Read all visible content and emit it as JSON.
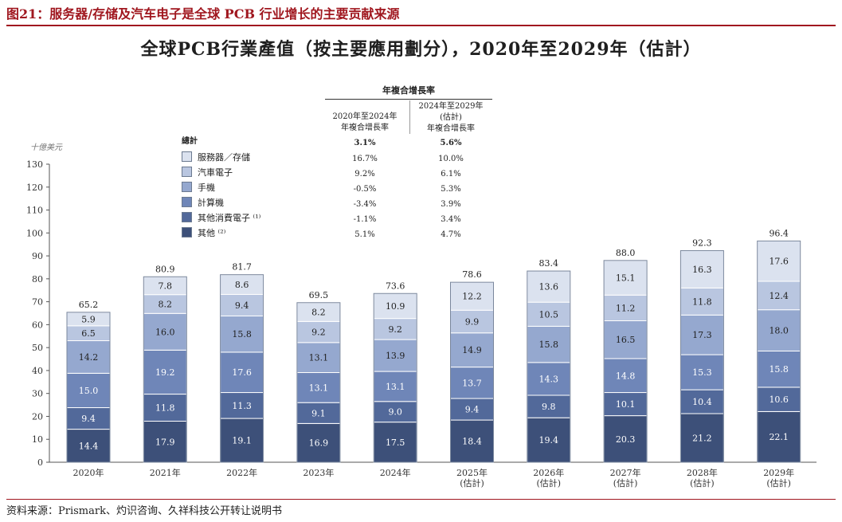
{
  "figure_title": "图21：服务器/存储及汽车电子是全球 PCB 行业增长的主要贡献来源",
  "source": "资料来源：Prismark、灼识咨询、久祥科技公开转让说明书",
  "chart_data": {
    "type": "bar",
    "stacked": true,
    "title": "全球PCB行業產值（按主要應用劃分），2020年至2029年（估計）",
    "ylabel": "十億美元",
    "ylim": [
      0,
      130
    ],
    "yticks": [
      0,
      10,
      20,
      30,
      40,
      50,
      60,
      70,
      80,
      90,
      100,
      110,
      120,
      130
    ],
    "categories": [
      "2020年",
      "2021年",
      "2022年",
      "2023年",
      "2024年",
      "2025年\n(估計)",
      "2026年\n(估計)",
      "2027年\n(估計)",
      "2028年\n(估計)",
      "2029年\n(估計)"
    ],
    "totals": [
      "65.2",
      "80.9",
      "81.7",
      "69.5",
      "73.6",
      "78.6",
      "83.4",
      "88.0",
      "92.3",
      "96.4"
    ],
    "legend_title": "總計",
    "legend_placement": "upper-left",
    "series": [
      {
        "name": "其他 ⁽²⁾",
        "color": "#3d5079",
        "values": [
          14.4,
          17.9,
          19.1,
          16.9,
          17.5,
          18.4,
          19.4,
          20.3,
          21.2,
          22.1
        ]
      },
      {
        "name": "其他消費電子 ⁽¹⁾",
        "color": "#52699a",
        "values": [
          9.4,
          11.8,
          11.3,
          9.1,
          9.0,
          9.4,
          9.8,
          10.1,
          10.4,
          10.6
        ]
      },
      {
        "name": "計算機",
        "color": "#6f86b8",
        "values": [
          15.0,
          19.2,
          17.6,
          13.1,
          13.1,
          13.7,
          14.3,
          14.8,
          15.3,
          15.8
        ]
      },
      {
        "name": "手機",
        "color": "#95a8cf",
        "values": [
          14.2,
          16.0,
          15.8,
          13.1,
          13.9,
          14.9,
          15.8,
          16.5,
          17.3,
          18.0
        ]
      },
      {
        "name": "汽車電子",
        "color": "#b9c6e0",
        "values": [
          6.5,
          8.2,
          9.4,
          9.2,
          9.2,
          9.9,
          10.5,
          11.2,
          11.8,
          12.4
        ]
      },
      {
        "name": "服務器／存儲",
        "color": "#dbe2ef",
        "values": [
          5.9,
          7.8,
          8.6,
          8.2,
          10.9,
          12.2,
          13.6,
          15.1,
          16.3,
          17.6
        ]
      }
    ],
    "value_labels": [
      [
        "14.4",
        "17.9",
        "19.1",
        "16.9",
        "17.5",
        "18.4",
        "19.4",
        "20.3",
        "21.2",
        "22.1"
      ],
      [
        "9.4",
        "11.8",
        "11.3",
        "9.1",
        "9.0",
        "9.4",
        "9.8",
        "10.1",
        "10.4",
        "10.6"
      ],
      [
        "15.0",
        "19.2",
        "17.6",
        "13.1",
        "13.1",
        "13.7",
        "14.3",
        "14.8",
        "15.3",
        "15.8"
      ],
      [
        "14.2",
        "16.0",
        "15.8",
        "13.1",
        "13.9",
        "14.9",
        "15.8",
        "16.5",
        "17.3",
        "18.0"
      ],
      [
        "6.5",
        "8.2",
        "9.4",
        "9.2",
        "9.2",
        "9.9",
        "10.5",
        "11.2",
        "11.8",
        "12.4"
      ],
      [
        "5.9",
        "7.8",
        "8.6",
        "8.2",
        "10.9",
        "12.2",
        "13.6",
        "15.1",
        "16.3",
        "17.6"
      ]
    ],
    "cagr_table": {
      "header": "年複合增長率",
      "col1_header": "2020年至2024年\n年複合增長率",
      "col2_header": "2024年至2029年\n(估計)\n年複合增長率",
      "total": [
        "3.1%",
        "5.6%"
      ],
      "rows": [
        [
          "16.7%",
          "10.0%"
        ],
        [
          "9.2%",
          "6.1%"
        ],
        [
          "-0.5%",
          "5.3%"
        ],
        [
          "-3.4%",
          "3.9%"
        ],
        [
          "-1.1%",
          "3.4%"
        ],
        [
          "5.1%",
          "4.7%"
        ]
      ]
    }
  }
}
